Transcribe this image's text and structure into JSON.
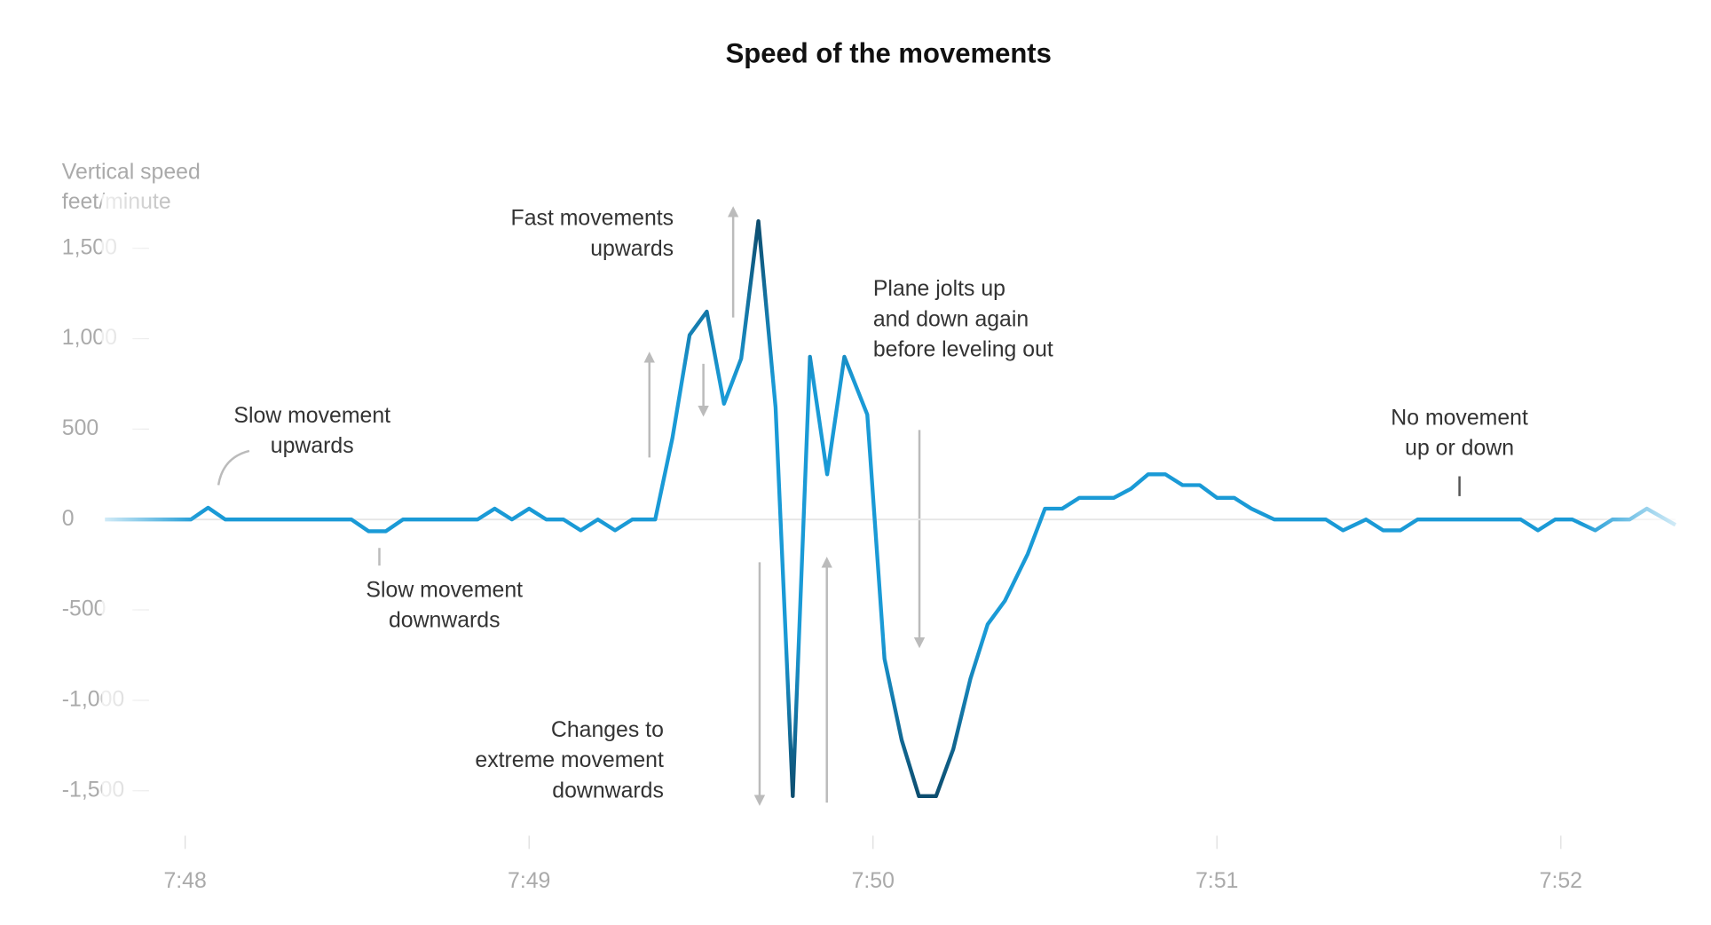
{
  "chart_data": {
    "type": "line",
    "title": "Speed of the movements",
    "y_label": [
      "Vertical speed",
      "feet/minute"
    ],
    "x": [
      -14,
      1,
      4,
      7,
      29,
      32,
      35,
      38,
      51,
      54,
      57,
      60,
      63,
      66,
      69,
      72,
      75,
      78,
      82,
      85,
      88,
      91,
      94,
      97,
      100,
      103,
      106,
      109,
      112,
      115,
      119,
      122,
      125,
      128,
      131,
      134,
      137,
      140,
      143,
      147,
      150,
      153,
      156,
      162,
      165,
      168,
      171,
      174,
      177,
      180,
      183,
      186,
      190,
      199,
      202,
      206,
      209,
      212,
      215,
      233,
      236,
      239,
      242,
      246,
      249,
      252,
      255,
      260
    ],
    "series": [
      {
        "color": "#1a9ad6",
        "values": [
          0,
          0,
          65,
          0,
          0,
          -65,
          -65,
          0,
          0,
          60,
          0,
          60,
          0,
          0,
          -60,
          0,
          -60,
          0,
          0,
          450,
          1020,
          1150,
          640,
          890,
          1650,
          620,
          -1530,
          900,
          250,
          900,
          580,
          -770,
          -1220,
          -1530,
          -1530,
          -1270,
          -880,
          -580,
          -450,
          -190,
          60,
          60,
          120,
          120,
          170,
          250,
          250,
          190,
          190,
          120,
          120,
          60,
          0,
          0,
          -60,
          0,
          -60,
          -60,
          0,
          0,
          -60,
          0,
          0,
          -60,
          0,
          0,
          60,
          -30
        ]
      }
    ],
    "xlim": [
      -14,
      260
    ],
    "xticks": [
      {
        "value": 0,
        "label": "7:48"
      },
      {
        "value": 60,
        "label": "7:49"
      },
      {
        "value": 120,
        "label": "7:50"
      },
      {
        "value": 180,
        "label": "7:51"
      },
      {
        "value": 240,
        "label": "7:52"
      }
    ],
    "ylim": [
      -1700,
      1800
    ],
    "yticks": [
      {
        "value": 1500,
        "label": "1,500"
      },
      {
        "value": 1000,
        "label": "1,000"
      },
      500,
      0,
      -500,
      {
        "value": -1000,
        "label": "-1,000"
      },
      {
        "value": -1500,
        "label": "-1,500"
      }
    ],
    "annotations": [
      {
        "lines": [
          "Slow movement",
          "upwards"
        ]
      },
      {
        "lines": [
          "Slow movement",
          "downwards"
        ]
      },
      {
        "lines": [
          "Fast movements",
          "upwards"
        ]
      },
      {
        "lines": [
          "Plane jolts up",
          "and down again",
          "before leveling out"
        ]
      },
      {
        "lines": [
          "Changes to",
          "extreme movement",
          "downwards"
        ]
      },
      {
        "lines": [
          "No movement",
          "up or down"
        ]
      }
    ]
  }
}
